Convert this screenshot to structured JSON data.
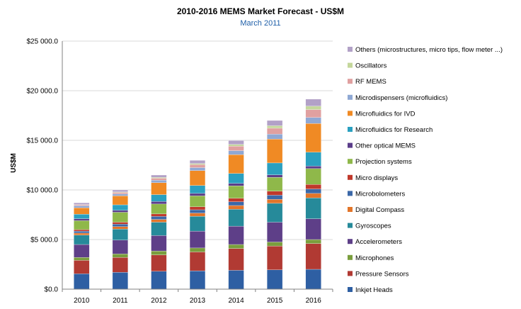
{
  "chart_data": {
    "type": "bar",
    "stacked": true,
    "title": "2010-2016 MEMS Market Forecast - US$M",
    "subtitle": "March 2011",
    "xlabel": "",
    "ylabel": "US$M",
    "ylim": [
      0,
      25000
    ],
    "yticks": [
      "$0.0",
      "$5 000.0",
      "$10 000.0",
      "$15 000.0",
      "$20 000.0",
      "$25 000.0"
    ],
    "grid": true,
    "legend_position": "right",
    "categories": [
      "2010",
      "2011",
      "2012",
      "2013",
      "2014",
      "2015",
      "2016"
    ],
    "series": [
      {
        "name": "Inkjet Heads",
        "color": "#2e5fa3",
        "values": [
          1550,
          1700,
          1800,
          1850,
          1900,
          1950,
          2000
        ]
      },
      {
        "name": "Pressure Sensors",
        "color": "#b13a33",
        "values": [
          1350,
          1500,
          1650,
          1900,
          2200,
          2400,
          2600
        ]
      },
      {
        "name": "Microphones",
        "color": "#7a9e3d",
        "values": [
          300,
          350,
          400,
          400,
          400,
          400,
          400
        ]
      },
      {
        "name": "Accelerometers",
        "color": "#5e3f88",
        "values": [
          1300,
          1400,
          1550,
          1700,
          1850,
          2000,
          2100
        ]
      },
      {
        "name": "Gyroscopes",
        "color": "#268a9a",
        "values": [
          950,
          1100,
          1350,
          1500,
          1700,
          1900,
          2100
        ]
      },
      {
        "name": "Digital Compass",
        "color": "#e2752a",
        "values": [
          200,
          250,
          280,
          320,
          380,
          400,
          450
        ]
      },
      {
        "name": "Microbolometers",
        "color": "#3b68a8",
        "values": [
          200,
          250,
          300,
          330,
          380,
          420,
          450
        ]
      },
      {
        "name": "Micro displays",
        "color": "#c0392b",
        "values": [
          150,
          200,
          250,
          300,
          350,
          400,
          450
        ]
      },
      {
        "name": "Projection systems",
        "color": "#8fb84a",
        "values": [
          900,
          1000,
          1000,
          1100,
          1250,
          1400,
          1600
        ]
      },
      {
        "name": "Other optical MEMS",
        "color": "#5b3d8a",
        "values": [
          200,
          200,
          250,
          250,
          250,
          250,
          250
        ]
      },
      {
        "name": "Microfluidics for Research",
        "color": "#2aa0c0",
        "values": [
          450,
          550,
          700,
          800,
          1000,
          1200,
          1400
        ]
      },
      {
        "name": "Microfluidics for IVD",
        "color": "#f08a24",
        "values": [
          650,
          900,
          1200,
          1500,
          1900,
          2400,
          2900
        ]
      },
      {
        "name": "Microdispensers (microfluidics)",
        "color": "#8fa8d4",
        "values": [
          200,
          200,
          250,
          300,
          400,
          500,
          600
        ]
      },
      {
        "name": "RF MEMS",
        "color": "#e0a0a0",
        "values": [
          100,
          150,
          200,
          300,
          450,
          600,
          800
        ]
      },
      {
        "name": "Oscillators",
        "color": "#c4d79b",
        "values": [
          30,
          50,
          80,
          120,
          180,
          250,
          350
        ]
      },
      {
        "name": "Others (microstructures, micro tips, flow meter ...)",
        "color": "#b2a1c7",
        "values": [
          170,
          200,
          240,
          310,
          390,
          530,
          700
        ]
      }
    ]
  },
  "legend_labels": [
    "Others (microstructures, micro tips, flow meter ...)",
    "Oscillators",
    "RF MEMS",
    "Microdispensers (microfluidics)",
    "Microfluidics for IVD",
    "Microfluidics for Research",
    "Other optical MEMS",
    "Projection systems",
    "Micro displays",
    "Microbolometers",
    "Digital Compass",
    "Gyroscopes",
    "Accelerometers",
    "Microphones",
    "Pressure Sensors",
    "Inkjet Heads"
  ]
}
